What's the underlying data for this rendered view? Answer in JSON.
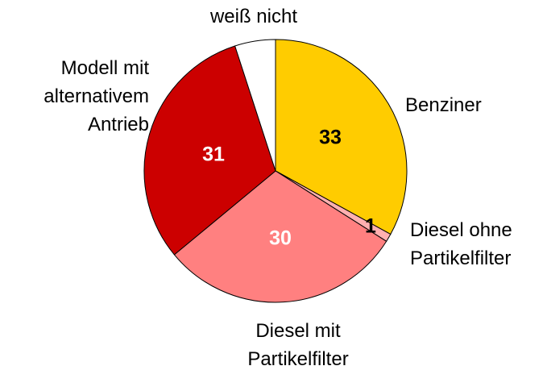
{
  "chart_data": {
    "type": "pie",
    "categories": [
      "Benziner",
      "Diesel ohne\nPartikelfilter",
      "Diesel mit\nPartikelfilter",
      "Modell mit\nalternativem\nAntrieb",
      "weiß nicht"
    ],
    "values": [
      33,
      1,
      30,
      31,
      5
    ],
    "value_labels": [
      "33",
      "1",
      "30",
      "31",
      null
    ],
    "colors": [
      "#ffcc00",
      "#ffb0b0",
      "#ff8080",
      "#cc0000",
      "#ffffff"
    ],
    "value_label_colors": [
      "#000000",
      "#000000",
      "#ffffff",
      "#ffffff",
      null
    ]
  }
}
